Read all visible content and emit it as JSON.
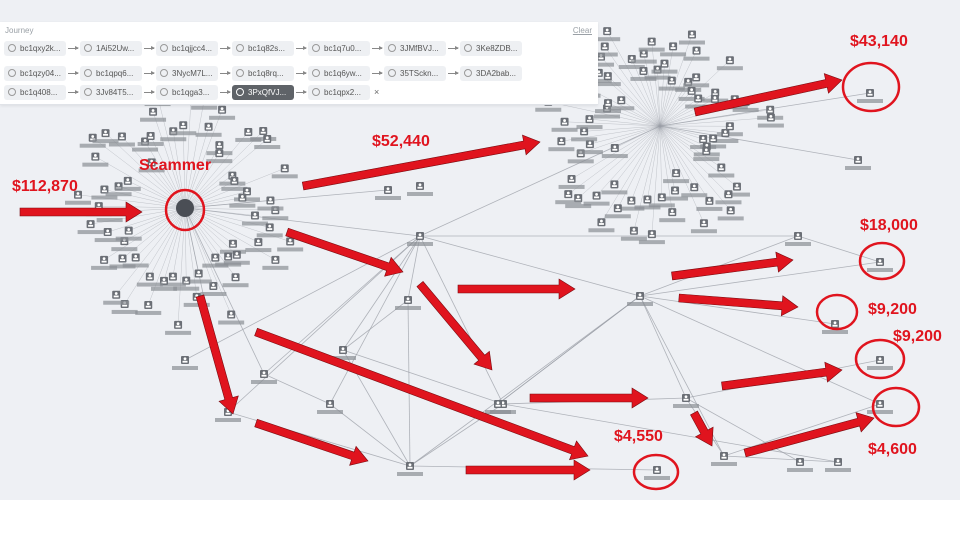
{
  "journey": {
    "title": "Journey",
    "clear_label": "Clear",
    "rows": [
      [
        "bc1qxy2k...",
        "1Ai52Uw...",
        "bc1qjjcc4...",
        "bc1q82s...",
        "bc1q7u0...",
        "3JMfBVJ...",
        "3Ke8ZDB..."
      ],
      [
        "bc1qzy04...",
        "bc1qpq6...",
        "3NycM7L...",
        "bc1q8rq...",
        "bc1q6yw...",
        "35TSckn...",
        "3DA2bab..."
      ],
      [
        "bc1q408...",
        "3Jv84T5...",
        "bc1qga3...",
        "3PxQfVJ...",
        "bc1qpx2..."
      ]
    ],
    "active_chip": "3PxQfVJ..."
  },
  "annotations": {
    "scammer": "Scammer",
    "inflow": "$112,870",
    "a1": "$52,440",
    "a2": "$43,140",
    "a3": "$18,000",
    "a4": "$9,200",
    "a5": "$9,200",
    "a6": "$4,550",
    "a7": "$4,600"
  },
  "colors": {
    "annotation_red": "#e0141e",
    "edge": "#9a9ea6",
    "node": "#6b6f76"
  }
}
